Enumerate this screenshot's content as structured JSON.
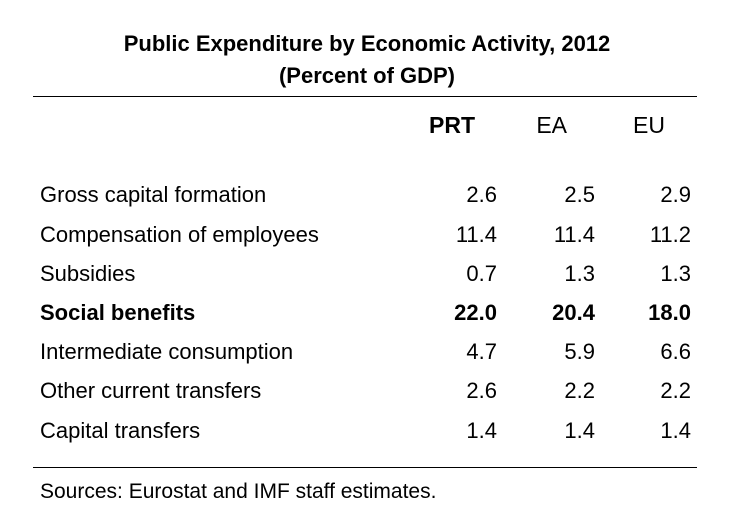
{
  "title": {
    "line1": "Public Expenditure by Economic Activity, 2012",
    "line2": "(Percent of GDP)"
  },
  "columns": [
    "PRT",
    "EA",
    "EU"
  ],
  "rows": [
    {
      "label": "Gross capital formation",
      "values": [
        "2.6",
        "2.5",
        "2.9"
      ]
    },
    {
      "label": "Compensation of employees",
      "values": [
        "11.4",
        "11.4",
        "11.2"
      ]
    },
    {
      "label": "Subsidies",
      "values": [
        "0.7",
        "1.3",
        "1.3"
      ]
    },
    {
      "label": "Social benefits",
      "values": [
        "22.0",
        "20.4",
        "18.0"
      ]
    },
    {
      "label": "Intermediate consumption",
      "values": [
        "4.7",
        "5.9",
        "6.6"
      ]
    },
    {
      "label": "Other current transfers",
      "values": [
        "2.6",
        "2.2",
        "2.2"
      ]
    },
    {
      "label": "Capital transfers",
      "values": [
        "1.4",
        "1.4",
        "1.4"
      ]
    }
  ],
  "source": "Sources: Eurostat and IMF staff estimates."
}
